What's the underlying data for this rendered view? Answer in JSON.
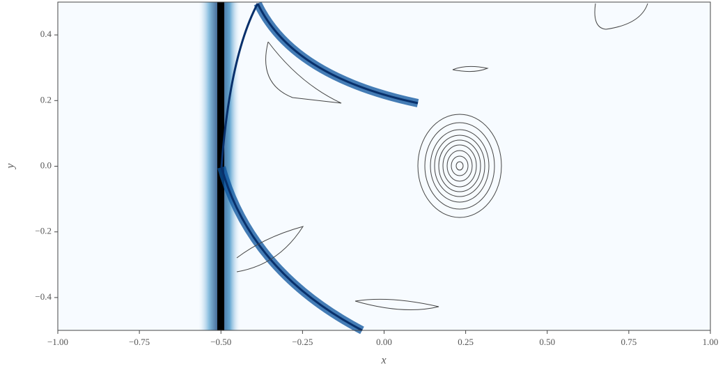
{
  "chart_data": {
    "type": "contour",
    "x_label": "x",
    "y_label": "y",
    "xlim": [
      -1,
      1
    ],
    "ylim": [
      -0.5,
      0.5
    ],
    "xticks": [
      {
        "value": -1,
        "label": "−1.00"
      },
      {
        "value": -0.75,
        "label": "−0.75"
      },
      {
        "value": -0.5,
        "label": "−0.50"
      },
      {
        "value": -0.25,
        "label": "−0.25"
      },
      {
        "value": 0,
        "label": "0.00"
      },
      0.25,
      {
        "value": 0.5,
        "label": "0.50"
      },
      0.75,
      {
        "value": 1,
        "label": "1.00"
      }
    ],
    "yticks": [
      {
        "value": -0.4,
        "label": "−0.4"
      },
      {
        "value": -0.2,
        "label": "−0.2"
      },
      {
        "value": 0,
        "label": "0.0"
      },
      0.2,
      0.4
    ]
  }
}
